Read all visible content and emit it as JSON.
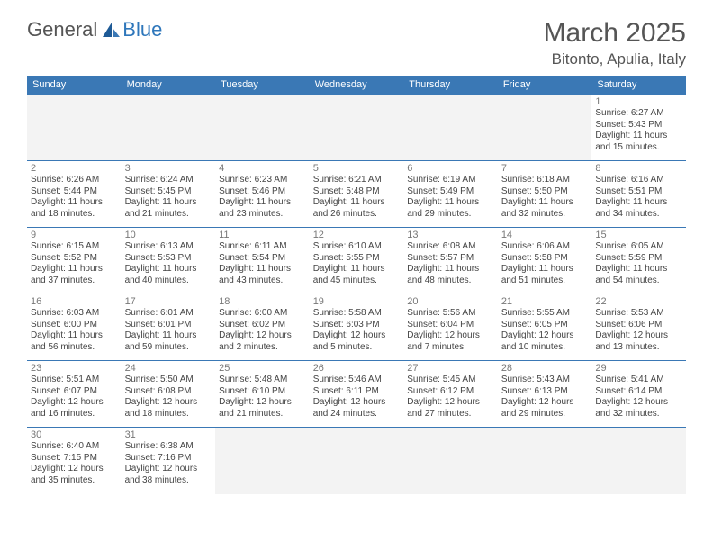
{
  "logo": {
    "part1": "General",
    "part2": "Blue"
  },
  "title": "March 2025",
  "location": "Bitonto, Apulia, Italy",
  "colors": {
    "header_bg": "#3a78b5",
    "header_text": "#ffffff",
    "border": "#3a78b5",
    "blank_bg": "#f3f3f3",
    "daynum": "#777777",
    "body_text": "#444444",
    "logo_general": "#555555",
    "logo_blue": "#2f77bb"
  },
  "weekdays": [
    "Sunday",
    "Monday",
    "Tuesday",
    "Wednesday",
    "Thursday",
    "Friday",
    "Saturday"
  ],
  "days": [
    {
      "n": 1,
      "sunrise": "6:27 AM",
      "sunset": "5:43 PM",
      "daylight": "11 hours and 15 minutes."
    },
    {
      "n": 2,
      "sunrise": "6:26 AM",
      "sunset": "5:44 PM",
      "daylight": "11 hours and 18 minutes."
    },
    {
      "n": 3,
      "sunrise": "6:24 AM",
      "sunset": "5:45 PM",
      "daylight": "11 hours and 21 minutes."
    },
    {
      "n": 4,
      "sunrise": "6:23 AM",
      "sunset": "5:46 PM",
      "daylight": "11 hours and 23 minutes."
    },
    {
      "n": 5,
      "sunrise": "6:21 AM",
      "sunset": "5:48 PM",
      "daylight": "11 hours and 26 minutes."
    },
    {
      "n": 6,
      "sunrise": "6:19 AM",
      "sunset": "5:49 PM",
      "daylight": "11 hours and 29 minutes."
    },
    {
      "n": 7,
      "sunrise": "6:18 AM",
      "sunset": "5:50 PM",
      "daylight": "11 hours and 32 minutes."
    },
    {
      "n": 8,
      "sunrise": "6:16 AM",
      "sunset": "5:51 PM",
      "daylight": "11 hours and 34 minutes."
    },
    {
      "n": 9,
      "sunrise": "6:15 AM",
      "sunset": "5:52 PM",
      "daylight": "11 hours and 37 minutes."
    },
    {
      "n": 10,
      "sunrise": "6:13 AM",
      "sunset": "5:53 PM",
      "daylight": "11 hours and 40 minutes."
    },
    {
      "n": 11,
      "sunrise": "6:11 AM",
      "sunset": "5:54 PM",
      "daylight": "11 hours and 43 minutes."
    },
    {
      "n": 12,
      "sunrise": "6:10 AM",
      "sunset": "5:55 PM",
      "daylight": "11 hours and 45 minutes."
    },
    {
      "n": 13,
      "sunrise": "6:08 AM",
      "sunset": "5:57 PM",
      "daylight": "11 hours and 48 minutes."
    },
    {
      "n": 14,
      "sunrise": "6:06 AM",
      "sunset": "5:58 PM",
      "daylight": "11 hours and 51 minutes."
    },
    {
      "n": 15,
      "sunrise": "6:05 AM",
      "sunset": "5:59 PM",
      "daylight": "11 hours and 54 minutes."
    },
    {
      "n": 16,
      "sunrise": "6:03 AM",
      "sunset": "6:00 PM",
      "daylight": "11 hours and 56 minutes."
    },
    {
      "n": 17,
      "sunrise": "6:01 AM",
      "sunset": "6:01 PM",
      "daylight": "11 hours and 59 minutes."
    },
    {
      "n": 18,
      "sunrise": "6:00 AM",
      "sunset": "6:02 PM",
      "daylight": "12 hours and 2 minutes."
    },
    {
      "n": 19,
      "sunrise": "5:58 AM",
      "sunset": "6:03 PM",
      "daylight": "12 hours and 5 minutes."
    },
    {
      "n": 20,
      "sunrise": "5:56 AM",
      "sunset": "6:04 PM",
      "daylight": "12 hours and 7 minutes."
    },
    {
      "n": 21,
      "sunrise": "5:55 AM",
      "sunset": "6:05 PM",
      "daylight": "12 hours and 10 minutes."
    },
    {
      "n": 22,
      "sunrise": "5:53 AM",
      "sunset": "6:06 PM",
      "daylight": "12 hours and 13 minutes."
    },
    {
      "n": 23,
      "sunrise": "5:51 AM",
      "sunset": "6:07 PM",
      "daylight": "12 hours and 16 minutes."
    },
    {
      "n": 24,
      "sunrise": "5:50 AM",
      "sunset": "6:08 PM",
      "daylight": "12 hours and 18 minutes."
    },
    {
      "n": 25,
      "sunrise": "5:48 AM",
      "sunset": "6:10 PM",
      "daylight": "12 hours and 21 minutes."
    },
    {
      "n": 26,
      "sunrise": "5:46 AM",
      "sunset": "6:11 PM",
      "daylight": "12 hours and 24 minutes."
    },
    {
      "n": 27,
      "sunrise": "5:45 AM",
      "sunset": "6:12 PM",
      "daylight": "12 hours and 27 minutes."
    },
    {
      "n": 28,
      "sunrise": "5:43 AM",
      "sunset": "6:13 PM",
      "daylight": "12 hours and 29 minutes."
    },
    {
      "n": 29,
      "sunrise": "5:41 AM",
      "sunset": "6:14 PM",
      "daylight": "12 hours and 32 minutes."
    },
    {
      "n": 30,
      "sunrise": "6:40 AM",
      "sunset": "7:15 PM",
      "daylight": "12 hours and 35 minutes."
    },
    {
      "n": 31,
      "sunrise": "6:38 AM",
      "sunset": "7:16 PM",
      "daylight": "12 hours and 38 minutes."
    }
  ],
  "labels": {
    "sunrise": "Sunrise:",
    "sunset": "Sunset:",
    "daylight": "Daylight:"
  },
  "layout": {
    "leading_blanks": 6,
    "trailing_blanks": 5
  }
}
